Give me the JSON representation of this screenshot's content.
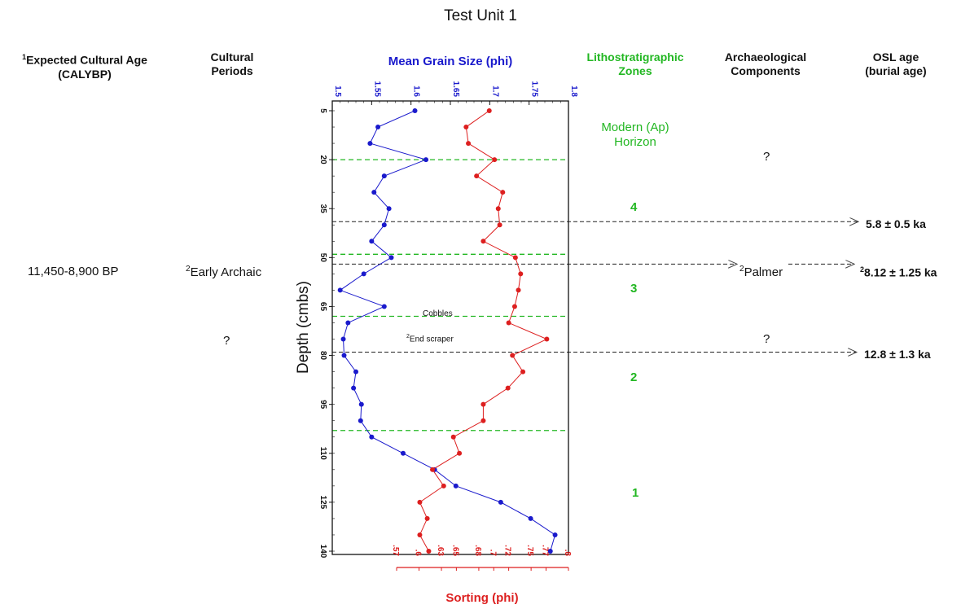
{
  "title": "Test Unit 1",
  "headers": {
    "cultural_age_sup": "1",
    "cultural_age_line1": "Expected Cultural Age",
    "cultural_age_line2": "(CALYBP)",
    "cultural_periods_line1": "Cultural",
    "cultural_periods_line2": "Periods",
    "lith_line1": "Lithostratigraphic",
    "lith_line2": "Zones",
    "arch_line1": "Archaeological",
    "arch_line2": "Components",
    "osl_line1": "OSL age",
    "osl_line2": "(burial age)"
  },
  "left_column": {
    "age_range": "11,450-8,900 BP",
    "period_sup": "2",
    "period": "Early Archaic",
    "unknown": "?"
  },
  "zones": {
    "modern_line1": "Modern (Ap)",
    "modern_line2": "Horizon",
    "z4": "4",
    "z3": "3",
    "z2": "2",
    "z1": "1"
  },
  "components": {
    "upper_unknown": "?",
    "palmer_sup": "2",
    "palmer": "Palmer",
    "lower_unknown": "?"
  },
  "osl_ages": {
    "a1": "5.8 ± 0.5 ka",
    "a2_sup": "2",
    "a2": "8.12 ± 1.25 ka",
    "a3": "12.8 ± 1.3 ka"
  },
  "annotations": {
    "cobbles": "Cobbles",
    "end_scraper_sup": "2",
    "end_scraper": "End scraper"
  },
  "colors": {
    "grain_series": "#1a1acc",
    "sorting_series": "#dd1f1f",
    "zone_boundary": "#22b722",
    "osl_line": "#222222"
  },
  "chart_data": {
    "type": "line",
    "orientation": "depth-profile",
    "ylabel": "Depth  (cmbs)",
    "ylim": [
      140,
      5
    ],
    "yticks": [
      5,
      20,
      35,
      50,
      65,
      80,
      95,
      110,
      125,
      140
    ],
    "top_axis": {
      "label": "Mean Grain Size (phi)",
      "lim": [
        1.5,
        1.8
      ],
      "ticks": [
        "1.5",
        "1.55",
        "1.6",
        "1.65",
        "1.7",
        "1.75",
        "1.8"
      ]
    },
    "bottom_axis": {
      "label": "Sorting (phi)",
      "lim": [
        0.57,
        0.8
      ],
      "ticks": [
        ".57",
        ".6",
        ".63",
        ".65",
        ".68",
        ".7",
        ".72",
        ".75",
        ".77",
        ".8"
      ]
    },
    "series": [
      {
        "name": "Mean Grain Size (phi)",
        "axis": "top",
        "points": [
          [
            5,
            1.605
          ],
          [
            10,
            1.558
          ],
          [
            15,
            1.548
          ],
          [
            20,
            1.619
          ],
          [
            25,
            1.566
          ],
          [
            30,
            1.553
          ],
          [
            35,
            1.572
          ],
          [
            40,
            1.566
          ],
          [
            45,
            1.55
          ],
          [
            50,
            1.575
          ],
          [
            55,
            1.54
          ],
          [
            60,
            1.51
          ],
          [
            65,
            1.566
          ],
          [
            70,
            1.52
          ],
          [
            75,
            1.514
          ],
          [
            80,
            1.515
          ],
          [
            85,
            1.53
          ],
          [
            90,
            1.527
          ],
          [
            95,
            1.537
          ],
          [
            100,
            1.536
          ],
          [
            105,
            1.55
          ],
          [
            110,
            1.59
          ],
          [
            115,
            1.63
          ],
          [
            120,
            1.657
          ],
          [
            125,
            1.714
          ],
          [
            130,
            1.752
          ],
          [
            135,
            1.783
          ],
          [
            140,
            1.777
          ]
        ]
      },
      {
        "name": "Sorting (phi)",
        "axis": "bottom",
        "points": [
          [
            5,
            0.694
          ],
          [
            10,
            0.663
          ],
          [
            15,
            0.666
          ],
          [
            20,
            0.701
          ],
          [
            25,
            0.677
          ],
          [
            30,
            0.712
          ],
          [
            35,
            0.706
          ],
          [
            40,
            0.708
          ],
          [
            45,
            0.686
          ],
          [
            50,
            0.729
          ],
          [
            55,
            0.736
          ],
          [
            60,
            0.733
          ],
          [
            65,
            0.728
          ],
          [
            70,
            0.72
          ],
          [
            75,
            0.771
          ],
          [
            80,
            0.725
          ],
          [
            85,
            0.739
          ],
          [
            90,
            0.719
          ],
          [
            95,
            0.686
          ],
          [
            100,
            0.686
          ],
          [
            105,
            0.646
          ],
          [
            110,
            0.654
          ],
          [
            115,
            0.618
          ],
          [
            120,
            0.633
          ],
          [
            125,
            0.601
          ],
          [
            130,
            0.611
          ],
          [
            135,
            0.601
          ],
          [
            140,
            0.613
          ]
        ]
      }
    ],
    "zone_boundaries_depth": [
      20,
      49,
      68,
      103
    ],
    "osl_sample_depths": [
      39,
      52,
      79
    ]
  }
}
